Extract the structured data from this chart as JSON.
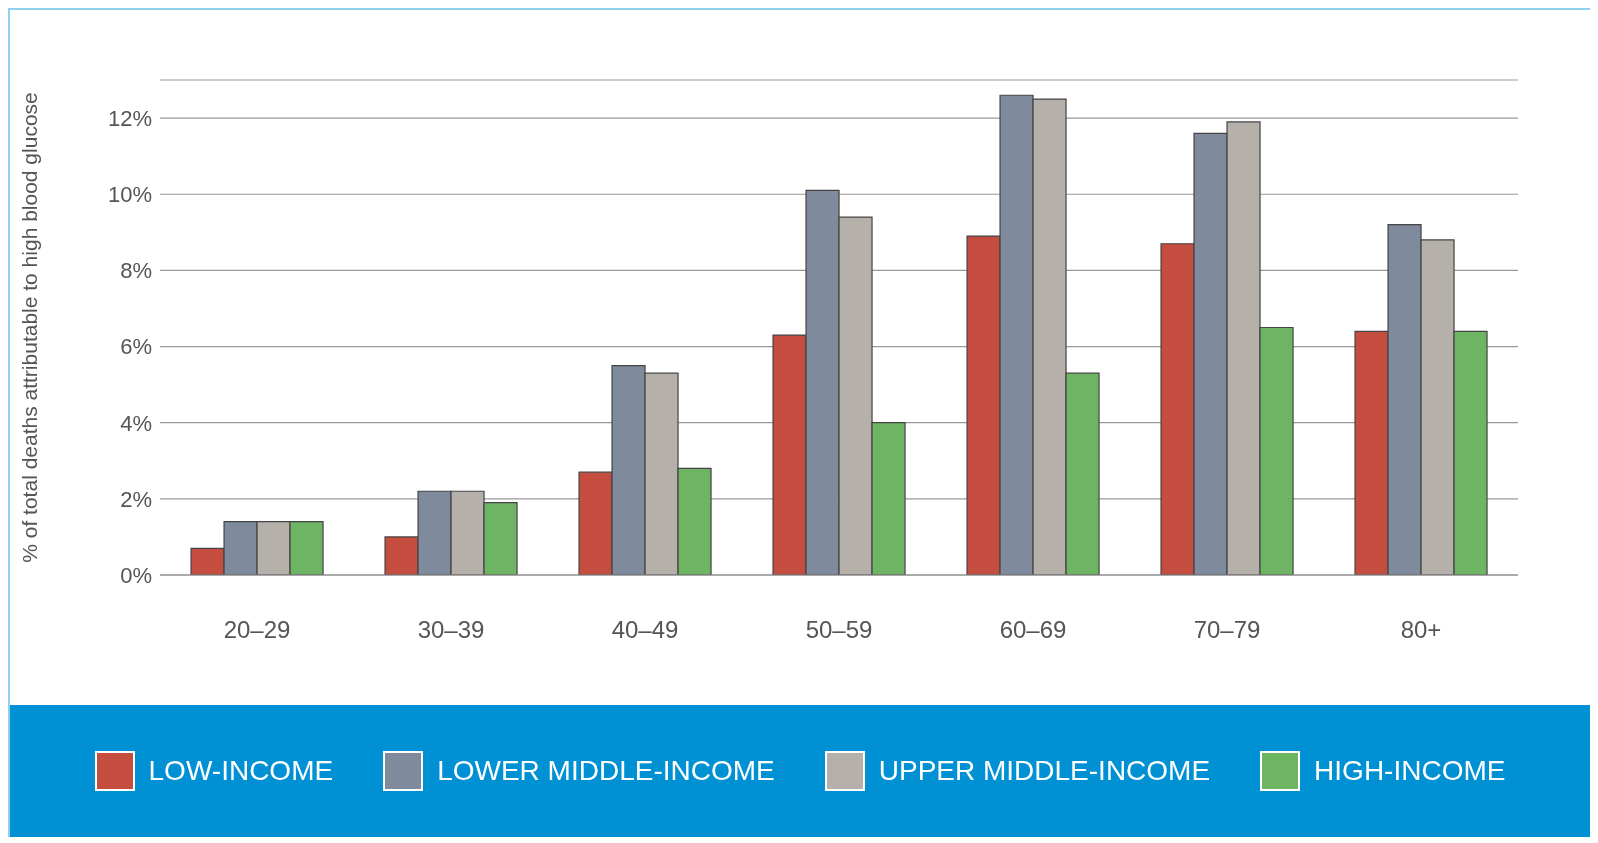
{
  "chart_data": {
    "type": "bar",
    "ylabel": "% of total deaths  attributable to high blood glucose",
    "categories": [
      "20–29",
      "30–39",
      "40–49",
      "50–59",
      "60–69",
      "70–79",
      "80+"
    ],
    "series": [
      {
        "name": "LOW-INCOME",
        "color": "#c44d3f",
        "values": [
          0.7,
          1.0,
          2.7,
          6.3,
          8.9,
          8.7,
          6.4
        ]
      },
      {
        "name": "LOWER MIDDLE-INCOME",
        "color": "#7f8a9c",
        "values": [
          1.4,
          2.2,
          5.5,
          10.1,
          12.6,
          11.6,
          9.2
        ]
      },
      {
        "name": "UPPER MIDDLE-INCOME",
        "color": "#b5b0aa",
        "values": [
          1.4,
          2.2,
          5.3,
          9.4,
          12.5,
          11.9,
          8.8
        ]
      },
      {
        "name": "HIGH-INCOME",
        "color": "#6db562",
        "values": [
          1.4,
          1.9,
          2.8,
          4.0,
          5.3,
          6.5,
          6.4
        ]
      }
    ],
    "ylim": [
      0,
      13
    ],
    "yticks": [
      {
        "value": 0,
        "label": "0%"
      },
      {
        "value": 2,
        "label": "2%"
      },
      {
        "value": 4,
        "label": "4%"
      },
      {
        "value": 6,
        "label": "6%"
      },
      {
        "value": 8,
        "label": "8%"
      },
      {
        "value": 10,
        "label": "10%"
      },
      {
        "value": 12,
        "label": "12%"
      }
    ],
    "grid": "y",
    "legend": "bottom"
  }
}
